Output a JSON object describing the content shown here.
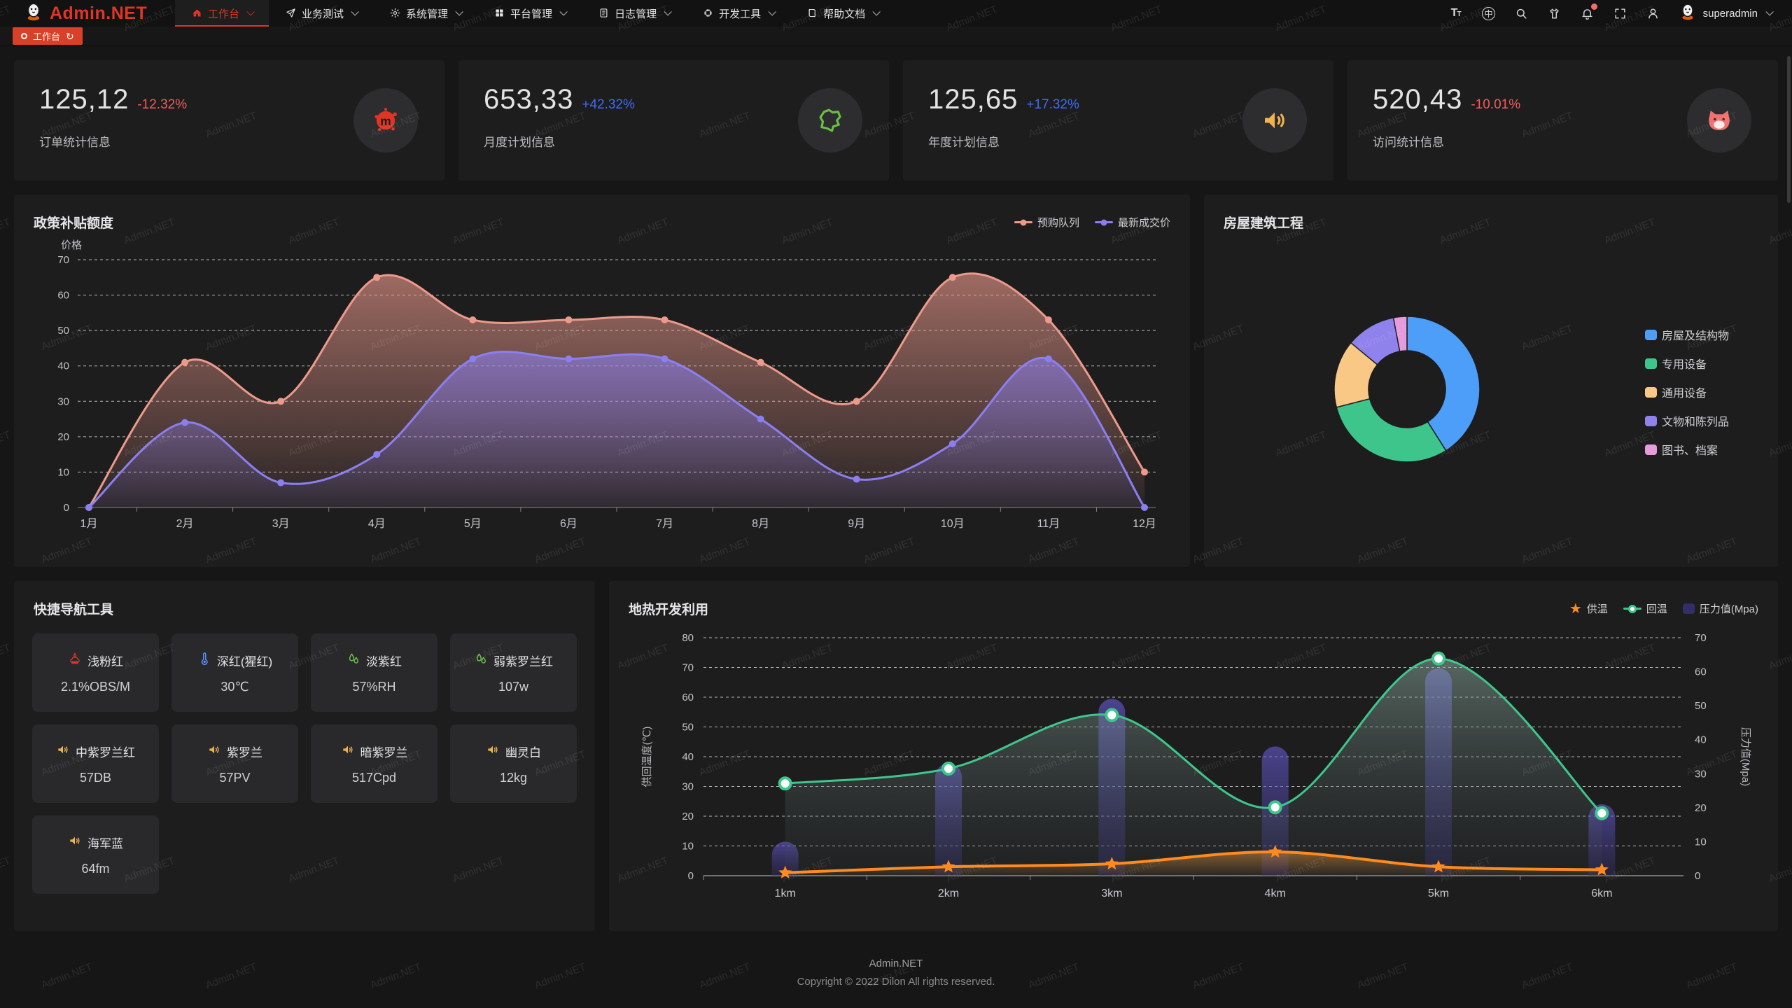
{
  "app": {
    "logo_text": "Admin.NET",
    "watermark": "Admin.NET"
  },
  "colors": {
    "accent_red": "#e13524",
    "delta_up": "#3e6bf6",
    "delta_down": "#f35b5b",
    "badge": "#f56c6c"
  },
  "navbar": {
    "menus": [
      {
        "label": "工作台",
        "icon": "home-icon",
        "active": true
      },
      {
        "label": "业务测试",
        "icon": "send-icon",
        "active": false
      },
      {
        "label": "系统管理",
        "icon": "gear-icon",
        "active": false
      },
      {
        "label": "平台管理",
        "icon": "grid-icon",
        "active": false
      },
      {
        "label": "日志管理",
        "icon": "log-icon",
        "active": false
      },
      {
        "label": "开发工具",
        "icon": "chip-icon",
        "active": false
      },
      {
        "label": "帮助文档",
        "icon": "book-icon",
        "active": false
      }
    ],
    "tools": [
      {
        "name": "font-size-icon"
      },
      {
        "name": "language-icon"
      },
      {
        "name": "search-icon"
      },
      {
        "name": "theme-icon"
      },
      {
        "name": "bell-icon",
        "badge": true
      },
      {
        "name": "fullscreen-icon"
      },
      {
        "name": "person-icon"
      }
    ],
    "user": {
      "name": "superadmin"
    }
  },
  "tabbar": {
    "active_tab": "工作台"
  },
  "stats": [
    {
      "value": "125,12",
      "delta": "-12.32%",
      "trend": "down",
      "label": "订单统计信息",
      "icon": "splash-icon",
      "icon_color": "#e13524"
    },
    {
      "value": "653,33",
      "delta": "+42.32%",
      "trend": "up",
      "label": "月度计划信息",
      "icon": "map-icon",
      "icon_color": "#6ac045"
    },
    {
      "value": "125,65",
      "delta": "+17.32%",
      "trend": "up",
      "label": "年度计划信息",
      "icon": "speaker-icon",
      "icon_color": "#efb34c"
    },
    {
      "value": "520,43",
      "delta": "-10.01%",
      "trend": "down",
      "label": "访问统计信息",
      "icon": "cat-icon",
      "icon_color": "#f0716f"
    }
  ],
  "chart_data": [
    {
      "id": "subsidy",
      "type": "area",
      "title": "政策补贴额度",
      "ylabel": "价格",
      "categories": [
        "1月",
        "2月",
        "3月",
        "4月",
        "5月",
        "6月",
        "7月",
        "8月",
        "9月",
        "10月",
        "11月",
        "12月"
      ],
      "series": [
        {
          "name": "预购队列",
          "color": "#ED9A8C",
          "values": [
            0,
            41,
            30,
            65,
            53,
            53,
            53,
            41,
            30,
            65,
            53,
            10
          ]
        },
        {
          "name": "最新成交价",
          "color": "#8B7FF0",
          "values": [
            0,
            24,
            7,
            15,
            42,
            42,
            42,
            25,
            8,
            18,
            42,
            0
          ]
        }
      ],
      "ylim": [
        0,
        70
      ],
      "ytick_step": 10,
      "grid": "dashed",
      "legend_position": "top-right"
    },
    {
      "id": "housing",
      "type": "pie",
      "donut": true,
      "title": "房屋建筑工程",
      "labels": [
        "房屋及结构物",
        "专用设备",
        "通用设备",
        "文物和陈列品",
        "图书、档案"
      ],
      "values": [
        41,
        30,
        15,
        11,
        3
      ],
      "colors": [
        "#4D9EF8",
        "#3DC58C",
        "#F9C884",
        "#8F82EC",
        "#E59BDC"
      ],
      "legend_position": "right"
    },
    {
      "id": "geothermal",
      "type": "mixed",
      "title": "地热开发利用",
      "categories": [
        "1km",
        "2km",
        "3km",
        "4km",
        "5km",
        "6km"
      ],
      "ylabel_left": "供回温度(℃)",
      "ylabel_right": "压力值(Mpa)",
      "ylim_left": [
        0,
        80
      ],
      "ylim_right": [
        0,
        70
      ],
      "grid": "dashed",
      "series": [
        {
          "name": "供温",
          "type": "line",
          "marker": "star",
          "color": "#FF8A1E",
          "axis": "left",
          "values": [
            1,
            3,
            4,
            8,
            3,
            2
          ]
        },
        {
          "name": "回温",
          "type": "line",
          "marker": "circle",
          "color": "#3EC78D",
          "axis": "left",
          "values": [
            31,
            36,
            54,
            23,
            73,
            21
          ]
        },
        {
          "name": "压力值(Mpa)",
          "type": "bar",
          "color": "#55489E",
          "axis": "right",
          "values": [
            10,
            33,
            52,
            38,
            61,
            21
          ]
        }
      ],
      "legend_position": "top-right"
    }
  ],
  "quick_nav": {
    "title": "快捷导航工具",
    "items": [
      {
        "icon": "fire-icon",
        "icon_color": "#e13524",
        "label": "浅粉红",
        "value": "2.1%OBS/M"
      },
      {
        "icon": "thermometer-icon",
        "icon_color": "#5b8ff9",
        "label": "深红(猩红)",
        "value": "30℃"
      },
      {
        "icon": "humidity-icon",
        "icon_color": "#6ac045",
        "label": "淡紫红",
        "value": "57%RH"
      },
      {
        "icon": "humidity-icon",
        "icon_color": "#6ac045",
        "label": "弱紫罗兰红",
        "value": "107w"
      },
      {
        "icon": "speaker-icon",
        "icon_color": "#efb34c",
        "label": "中紫罗兰红",
        "value": "57DB"
      },
      {
        "icon": "speaker-icon",
        "icon_color": "#efb34c",
        "label": "紫罗兰",
        "value": "57PV"
      },
      {
        "icon": "speaker-icon",
        "icon_color": "#efb34c",
        "label": "暗紫罗兰",
        "value": "517Cpd"
      },
      {
        "icon": "speaker-icon",
        "icon_color": "#efb34c",
        "label": "幽灵白",
        "value": "12kg"
      },
      {
        "icon": "speaker-icon",
        "icon_color": "#efb34c",
        "label": "海军蓝",
        "value": "64fm"
      }
    ]
  },
  "footer": {
    "line1": "Admin.NET",
    "line2": "Copyright © 2022 Dilon All rights reserved."
  }
}
